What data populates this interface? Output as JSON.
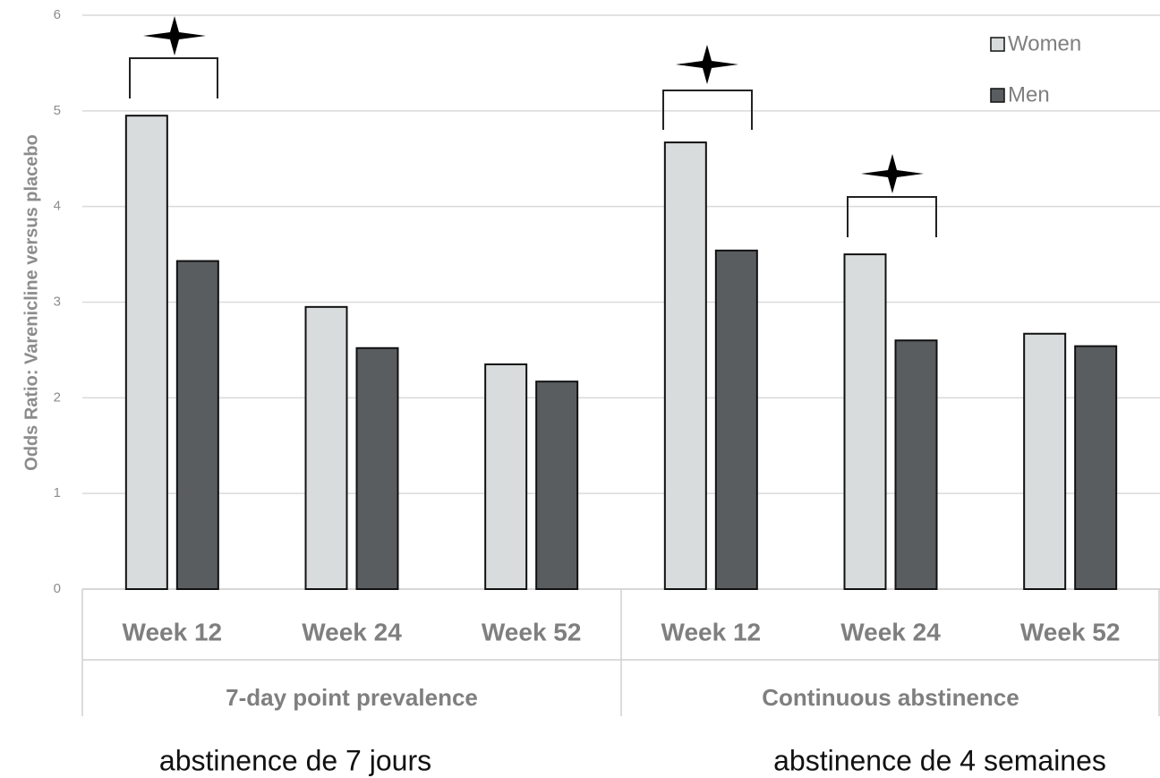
{
  "chart_data": {
    "type": "bar",
    "y_label": "Odds Ratio: Varenicline versus placebo",
    "categories": [
      "Week 12",
      "Week 24",
      "Week 52",
      "Week 12",
      "Week 24",
      "Week 52"
    ],
    "groups": [
      "7-day point prevalence",
      "Continuous abstinence"
    ],
    "captions": [
      "abstinence de 7 jours",
      "abstinence de 4 semaines"
    ],
    "series": [
      {
        "name": "Women",
        "color": "#d9dcdd",
        "values": [
          4.95,
          2.95,
          2.35,
          4.67,
          3.5,
          2.67
        ]
      },
      {
        "name": "Men",
        "color": "#5a5d5f",
        "values": [
          3.43,
          2.52,
          2.17,
          3.54,
          2.6,
          2.54
        ]
      }
    ],
    "ylim": [
      0,
      6
    ],
    "yticks": [
      0,
      1,
      2,
      3,
      4,
      5,
      6
    ],
    "grid": true,
    "legend": "top-right"
  }
}
